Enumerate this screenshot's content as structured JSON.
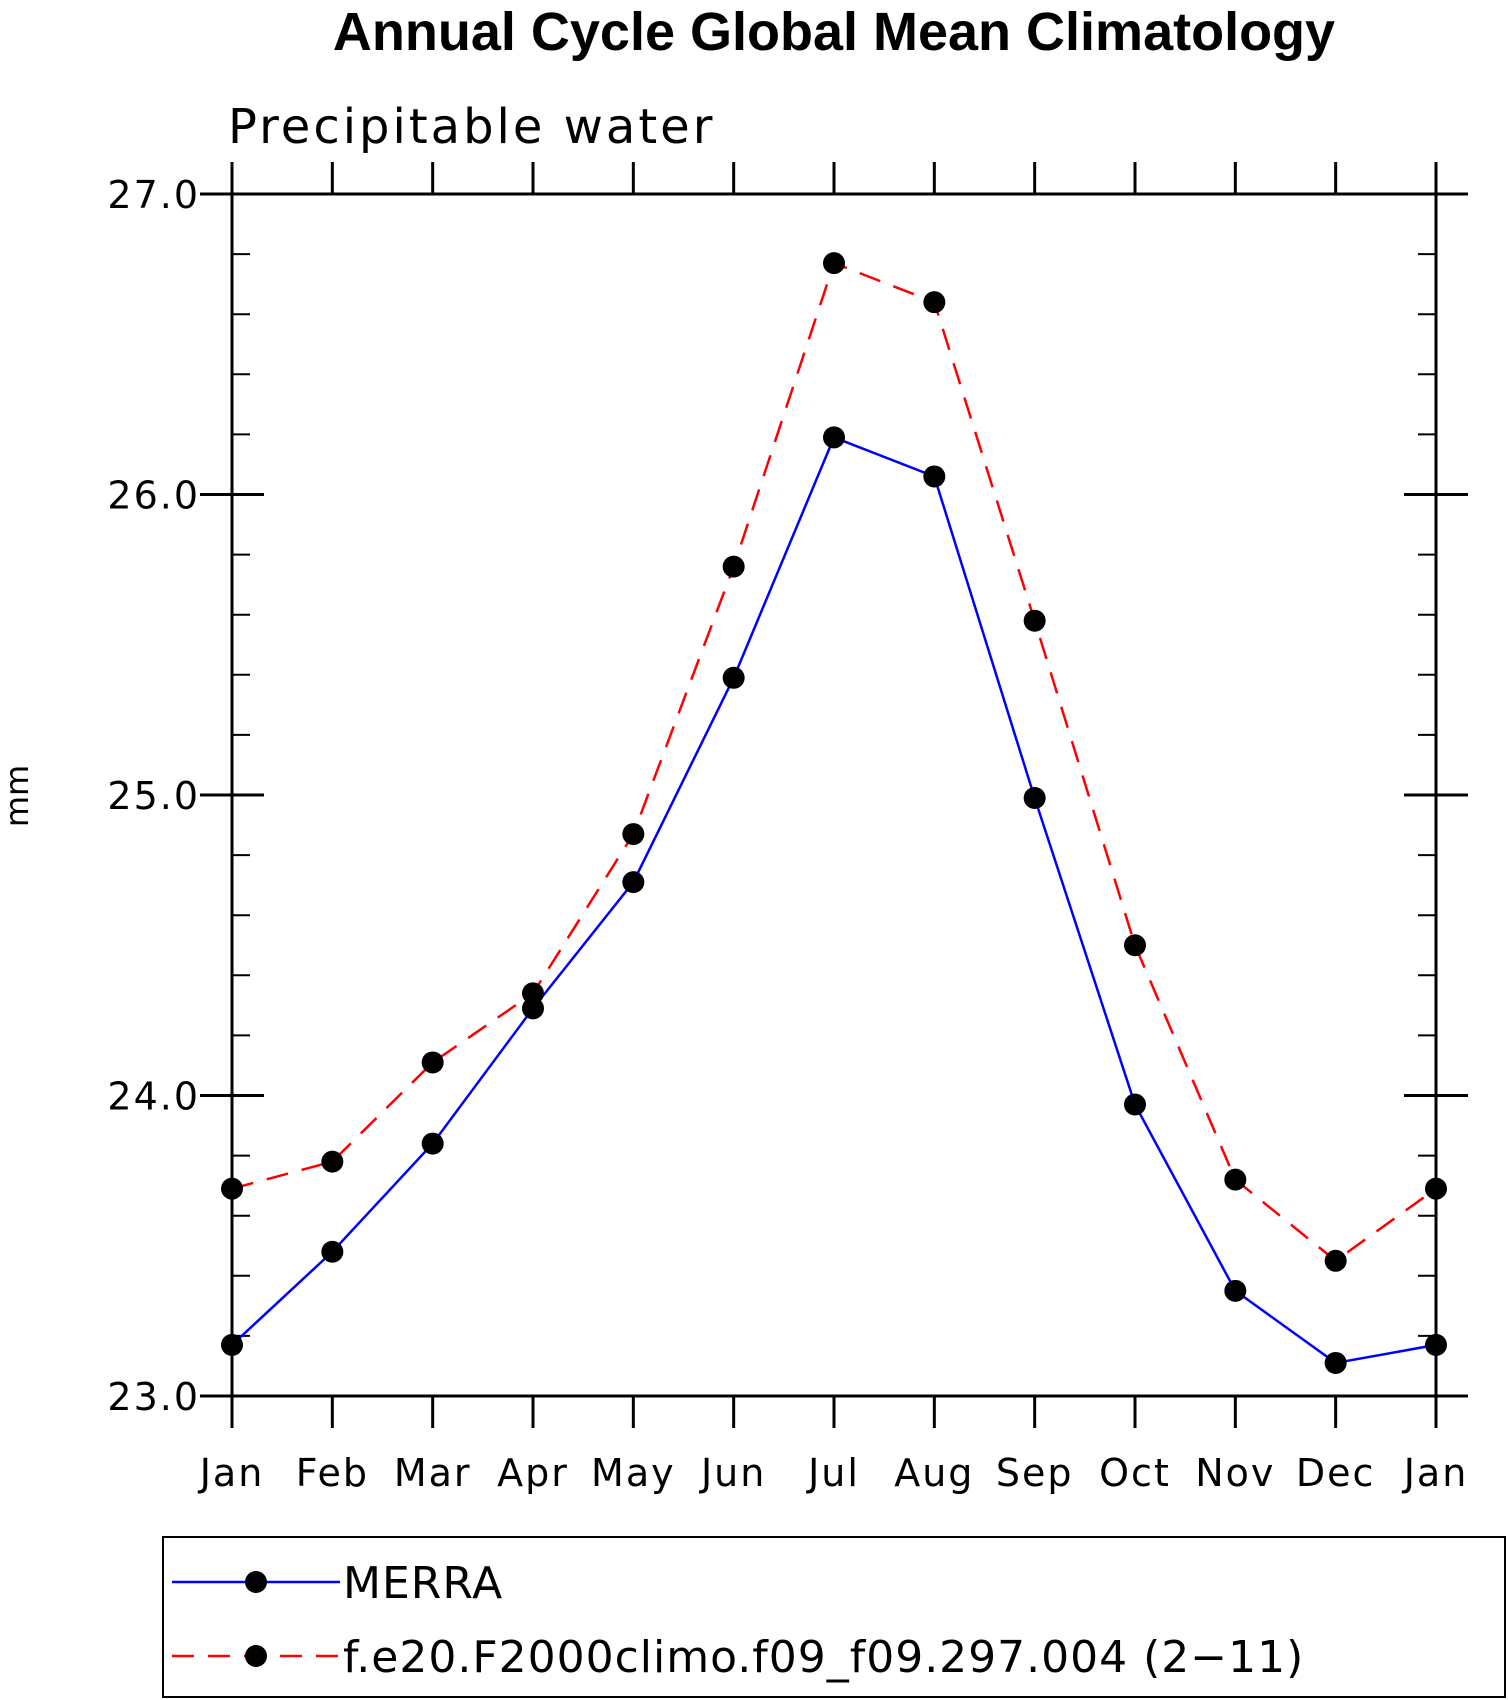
{
  "chart_data": {
    "type": "line",
    "title": "Annual Cycle Global Mean Climatology",
    "subtitle": "Precipitable water",
    "ylabel": "mm",
    "ylim": [
      23.0,
      27.0
    ],
    "yticks": [
      "23.0",
      "24.0",
      "25.0",
      "26.0",
      "27.0"
    ],
    "categories": [
      "Jan",
      "Feb",
      "Mar",
      "Apr",
      "May",
      "Jun",
      "Jul",
      "Aug",
      "Sep",
      "Oct",
      "Nov",
      "Dec",
      "Jan"
    ],
    "series": [
      {
        "name": "MERRA",
        "color": "#0000ff",
        "dashed": false,
        "values": [
          23.17,
          23.48,
          23.84,
          24.29,
          24.71,
          25.39,
          26.19,
          26.06,
          24.99,
          23.97,
          23.35,
          23.11,
          23.17
        ]
      },
      {
        "name": "f.e20.F2000climo.f09_f09.297.004 (2−11)",
        "color": "#ff0000",
        "dashed": true,
        "values": [
          23.69,
          23.78,
          24.11,
          24.34,
          24.87,
          25.76,
          26.77,
          26.64,
          25.58,
          24.5,
          23.72,
          23.45,
          23.69
        ]
      }
    ],
    "marker": "filled-circle",
    "legend_position": "bottom"
  }
}
